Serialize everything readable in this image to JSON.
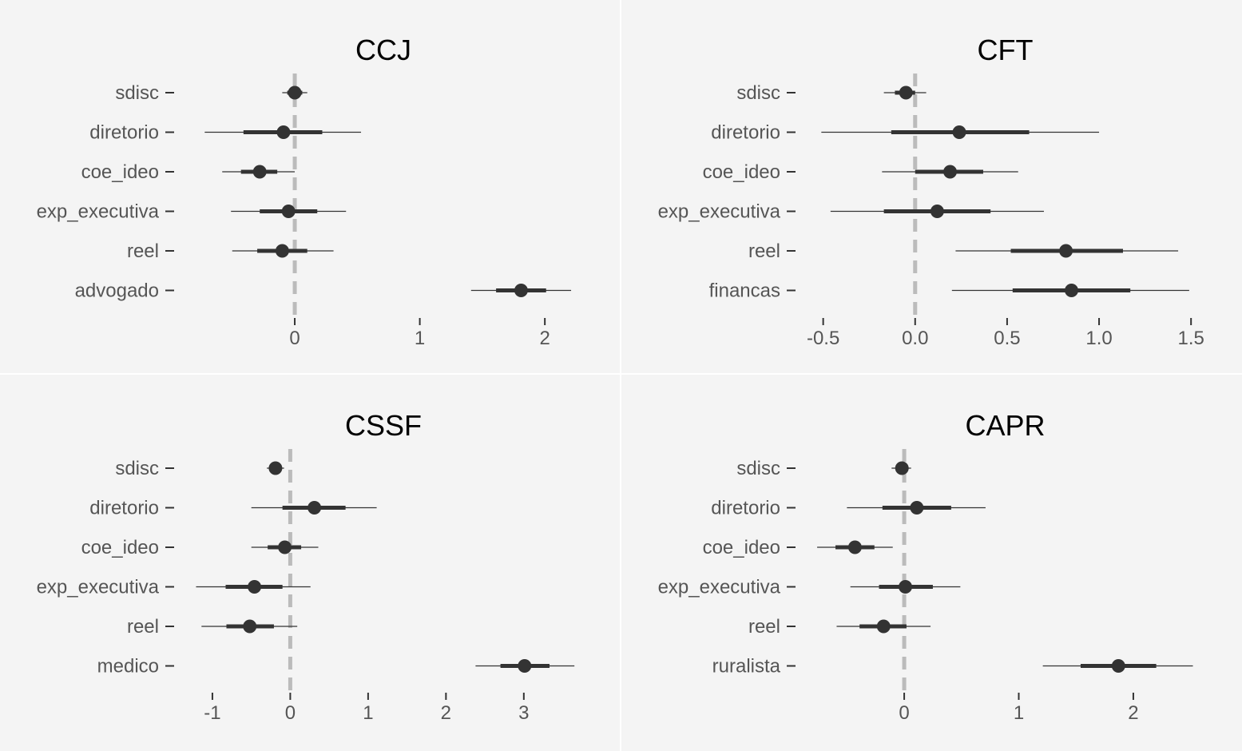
{
  "chart_data": [
    {
      "type": "coefficient-plot",
      "title": "CCJ",
      "categories": [
        "sdisc",
        "diretorio",
        "coe_ideo",
        "exp_executiva",
        "reel",
        "advogado"
      ],
      "estimates": [
        0.0,
        -0.09,
        -0.28,
        -0.05,
        -0.1,
        1.81
      ],
      "inner_low": [
        -0.06,
        -0.41,
        -0.43,
        -0.28,
        -0.3,
        1.61
      ],
      "inner_high": [
        0.06,
        0.22,
        -0.14,
        0.18,
        0.1,
        2.01
      ],
      "outer_low": [
        -0.1,
        -0.72,
        -0.58,
        -0.51,
        -0.5,
        1.41
      ],
      "outer_high": [
        0.1,
        0.53,
        0.0,
        0.41,
        0.31,
        2.21
      ],
      "reference_line": 0,
      "xlim": [
        -0.92,
        2.28
      ],
      "xticks": [
        0,
        1,
        2
      ],
      "tick_labels": [
        "0",
        "1",
        "2"
      ],
      "colors": {
        "point": "#333333",
        "reference": "#bbbbbb",
        "panel": "#f4f4f4",
        "axis": "#333333"
      }
    },
    {
      "type": "coefficient-plot",
      "title": "CFT",
      "categories": [
        "sdisc",
        "diretorio",
        "coe_ideo",
        "exp_executiva",
        "reel",
        "financas"
      ],
      "estimates": [
        -0.05,
        0.24,
        0.19,
        0.12,
        0.82,
        0.85
      ],
      "inner_low": [
        -0.11,
        -0.13,
        0.0,
        -0.17,
        0.52,
        0.53
      ],
      "inner_high": [
        0.0,
        0.62,
        0.37,
        0.41,
        1.13,
        1.17
      ],
      "outer_low": [
        -0.17,
        -0.51,
        -0.18,
        -0.46,
        0.22,
        0.2
      ],
      "outer_high": [
        0.06,
        1.0,
        0.56,
        0.7,
        1.43,
        1.49
      ],
      "reference_line": 0,
      "xlim": [
        -0.62,
        1.56
      ],
      "xticks": [
        -0.5,
        0.0,
        0.5,
        1.0,
        1.5
      ],
      "tick_labels": [
        "-0.5",
        "0.0",
        "0.5",
        "1.0",
        "1.5"
      ],
      "colors": {
        "point": "#333333",
        "reference": "#bbbbbb",
        "panel": "#f4f4f4",
        "axis": "#333333"
      }
    },
    {
      "type": "coefficient-plot",
      "title": "CSSF",
      "categories": [
        "sdisc",
        "diretorio",
        "coe_ideo",
        "exp_executiva",
        "reel",
        "medico"
      ],
      "estimates": [
        -0.19,
        0.31,
        -0.07,
        -0.46,
        -0.52,
        3.01
      ],
      "inner_low": [
        -0.27,
        -0.1,
        -0.29,
        -0.83,
        -0.82,
        2.7
      ],
      "inner_high": [
        -0.12,
        0.71,
        0.14,
        -0.1,
        -0.21,
        3.33
      ],
      "outer_low": [
        -0.3,
        -0.5,
        -0.5,
        -1.21,
        -1.14,
        2.38
      ],
      "outer_high": [
        -0.08,
        1.11,
        0.36,
        0.26,
        0.09,
        3.65
      ],
      "reference_line": 0,
      "xlim": [
        -1.42,
        3.72
      ],
      "xticks": [
        -1,
        0,
        1,
        2,
        3
      ],
      "tick_labels": [
        "-1",
        "0",
        "1",
        "2",
        "3"
      ],
      "colors": {
        "point": "#333333",
        "reference": "#bbbbbb",
        "panel": "#f4f4f4",
        "axis": "#333333"
      }
    },
    {
      "type": "coefficient-plot",
      "title": "CAPR",
      "categories": [
        "sdisc",
        "diretorio",
        "coe_ideo",
        "exp_executiva",
        "reel",
        "ruralista"
      ],
      "estimates": [
        -0.02,
        0.11,
        -0.43,
        0.01,
        -0.18,
        1.87
      ],
      "inner_low": [
        -0.07,
        -0.19,
        -0.6,
        -0.22,
        -0.39,
        1.54
      ],
      "inner_high": [
        0.03,
        0.41,
        -0.26,
        0.25,
        0.02,
        2.2
      ],
      "outer_low": [
        -0.11,
        -0.5,
        -0.76,
        -0.47,
        -0.59,
        1.21
      ],
      "outer_high": [
        0.06,
        0.71,
        -0.1,
        0.49,
        0.23,
        2.52
      ],
      "reference_line": 0,
      "xlim": [
        -0.9,
        2.6
      ],
      "xticks": [
        0,
        1,
        2
      ],
      "tick_labels": [
        "0",
        "1",
        "2"
      ],
      "colors": {
        "point": "#333333",
        "reference": "#bbbbbb",
        "panel": "#f4f4f4",
        "axis": "#333333"
      }
    }
  ]
}
